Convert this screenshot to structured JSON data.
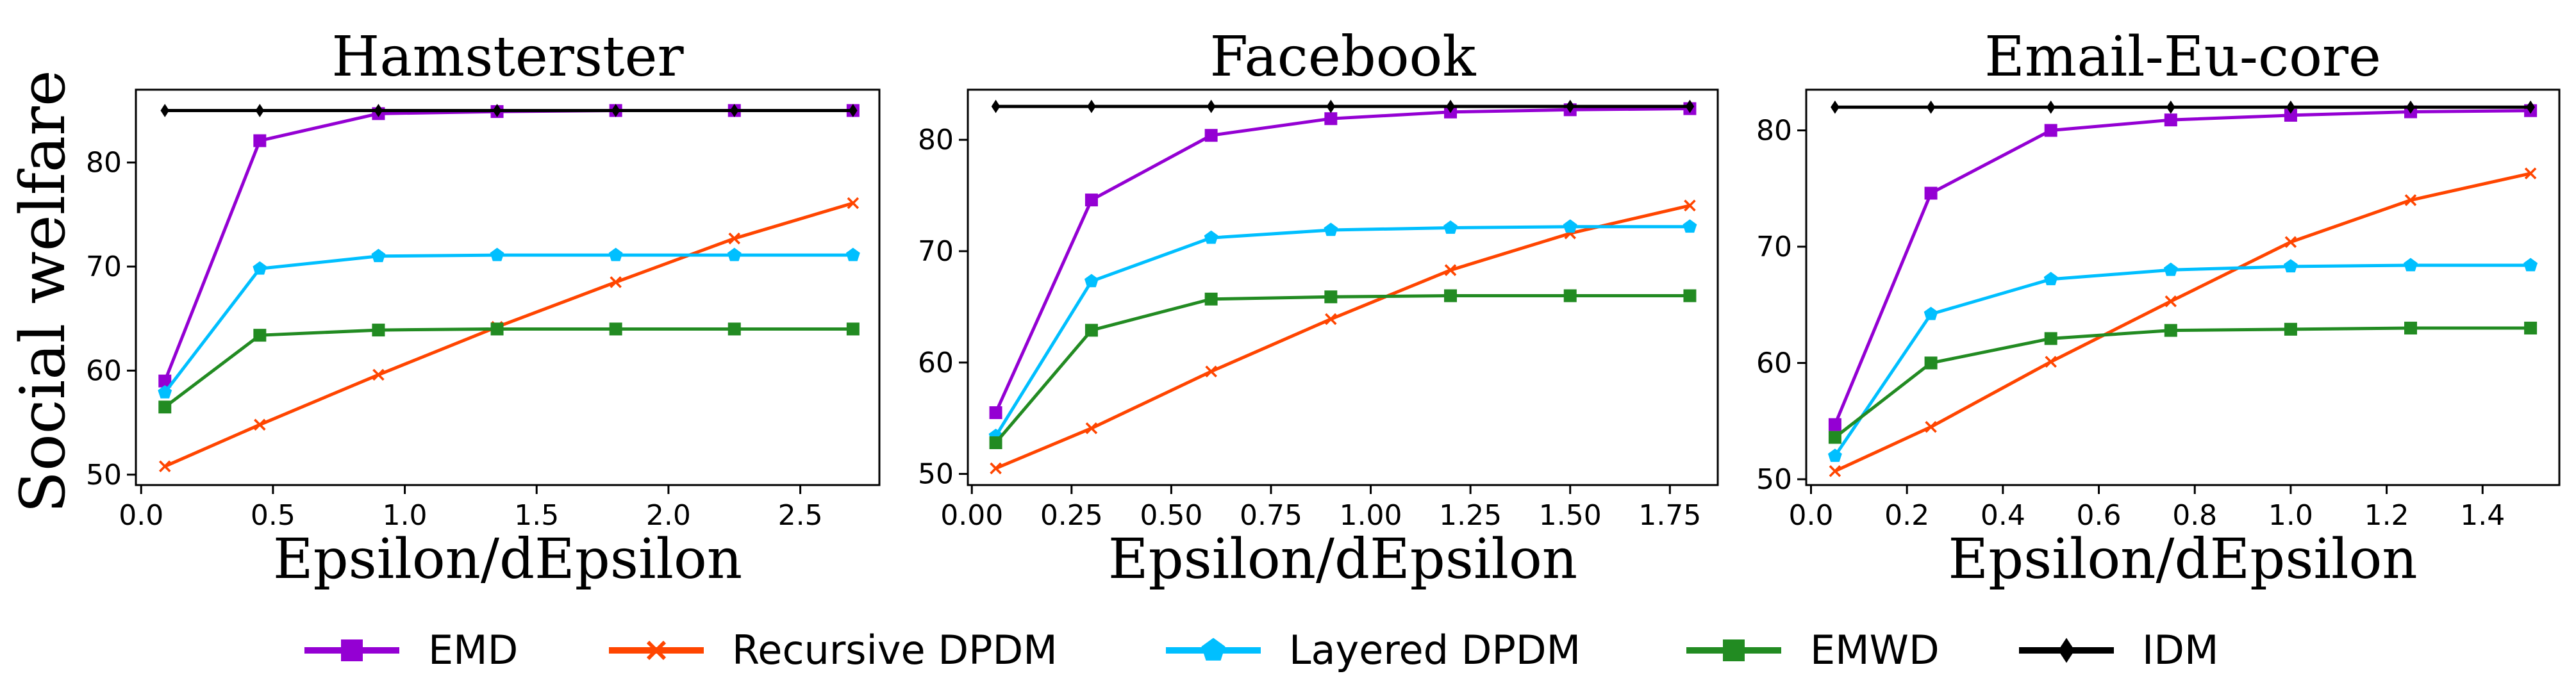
{
  "figure": {
    "ylabel": "Social welfare"
  },
  "legend": {
    "placement": "bottom-center",
    "entries": [
      {
        "name": "EMD",
        "color": "#9400d3",
        "marker": "square"
      },
      {
        "name": "Recursive DPDM",
        "color": "#ff4500",
        "marker": "x"
      },
      {
        "name": "Layered DPDM",
        "color": "#00bfff",
        "marker": "pentagon"
      },
      {
        "name": "EMWD",
        "color": "#228b22",
        "marker": "square"
      },
      {
        "name": "IDM",
        "color": "#000000",
        "marker": "diamond"
      }
    ]
  },
  "chart_data": [
    {
      "type": "line",
      "title": "Hamsterster",
      "xlabel": "Epsilon/dEpsilon",
      "ylabel": "Social welfare",
      "xlim": [
        -0.02,
        2.8
      ],
      "ylim": [
        49,
        87
      ],
      "xticks": [
        0.0,
        0.5,
        1.0,
        1.5,
        2.0,
        2.5
      ],
      "xtick_labels": [
        "0.0",
        "0.5",
        "1.0",
        "1.5",
        "2.0",
        "2.5"
      ],
      "yticks": [
        50,
        60,
        70,
        80
      ],
      "ytick_labels": [
        "50",
        "60",
        "70",
        "80"
      ],
      "x": [
        0.09,
        0.45,
        0.9,
        1.35,
        1.8,
        2.25,
        2.7
      ],
      "series": [
        {
          "name": "EMD",
          "values": [
            59.0,
            82.1,
            84.7,
            84.9,
            85.0,
            85.0,
            85.0
          ]
        },
        {
          "name": "Recursive DPDM",
          "values": [
            50.8,
            54.8,
            59.6,
            64.2,
            68.5,
            72.7,
            76.1
          ]
        },
        {
          "name": "Layered DPDM",
          "values": [
            57.9,
            69.8,
            71.0,
            71.1,
            71.1,
            71.1,
            71.1
          ]
        },
        {
          "name": "EMWD",
          "values": [
            56.5,
            63.4,
            63.9,
            64.0,
            64.0,
            64.0,
            64.0
          ]
        },
        {
          "name": "IDM",
          "values": [
            85.0,
            85.0,
            85.0,
            85.0,
            85.0,
            85.0,
            85.0
          ]
        }
      ]
    },
    {
      "type": "line",
      "title": "Facebook",
      "xlabel": "Epsilon/dEpsilon",
      "ylabel": "",
      "xlim": [
        -0.01,
        1.87
      ],
      "ylim": [
        49,
        84.5
      ],
      "xticks": [
        0.0,
        0.25,
        0.5,
        0.75,
        1.0,
        1.25,
        1.5,
        1.75
      ],
      "xtick_labels": [
        "0.00",
        "0.25",
        "0.50",
        "0.75",
        "1.00",
        "1.25",
        "1.50",
        "1.75"
      ],
      "yticks": [
        50,
        60,
        70,
        80
      ],
      "ytick_labels": [
        "50",
        "60",
        "70",
        "80"
      ],
      "x": [
        0.06,
        0.3,
        0.6,
        0.9,
        1.2,
        1.5,
        1.8
      ],
      "series": [
        {
          "name": "EMD",
          "values": [
            55.5,
            74.6,
            80.4,
            81.9,
            82.5,
            82.7,
            82.8
          ]
        },
        {
          "name": "Recursive DPDM",
          "values": [
            50.5,
            54.1,
            59.2,
            63.9,
            68.3,
            71.6,
            74.1
          ]
        },
        {
          "name": "Layered DPDM",
          "values": [
            53.4,
            67.3,
            71.2,
            71.9,
            72.1,
            72.2,
            72.2
          ]
        },
        {
          "name": "EMWD",
          "values": [
            52.8,
            62.9,
            65.7,
            65.9,
            66.0,
            66.0,
            66.0
          ]
        },
        {
          "name": "IDM",
          "values": [
            83.0,
            83.0,
            83.0,
            83.0,
            83.0,
            83.0,
            83.0
          ]
        }
      ]
    },
    {
      "type": "line",
      "title": "Email-Eu-core",
      "xlabel": "Epsilon/dEpsilon",
      "ylabel": "",
      "xlim": [
        -0.01,
        1.56
      ],
      "ylim": [
        49.5,
        83.5
      ],
      "xticks": [
        0.0,
        0.2,
        0.4,
        0.6,
        0.8,
        1.0,
        1.2,
        1.4
      ],
      "xtick_labels": [
        "0.0",
        "0.2",
        "0.4",
        "0.6",
        "0.8",
        "1.0",
        "1.2",
        "1.4"
      ],
      "yticks": [
        50,
        60,
        70,
        80
      ],
      "ytick_labels": [
        "50",
        "60",
        "70",
        "80"
      ],
      "x": [
        0.05,
        0.25,
        0.5,
        0.75,
        1.0,
        1.25,
        1.5
      ],
      "series": [
        {
          "name": "EMD",
          "values": [
            54.7,
            74.6,
            80.0,
            80.9,
            81.3,
            81.6,
            81.7
          ]
        },
        {
          "name": "Recursive DPDM",
          "values": [
            50.7,
            54.5,
            60.1,
            65.3,
            70.4,
            74.0,
            76.3
          ]
        },
        {
          "name": "Layered DPDM",
          "values": [
            52.0,
            64.2,
            67.2,
            68.0,
            68.3,
            68.4,
            68.4
          ]
        },
        {
          "name": "EMWD",
          "values": [
            53.6,
            60.0,
            62.1,
            62.8,
            62.9,
            63.0,
            63.0
          ]
        },
        {
          "name": "IDM",
          "values": [
            82.0,
            82.0,
            82.0,
            82.0,
            82.0,
            82.0,
            82.0
          ]
        }
      ]
    }
  ]
}
